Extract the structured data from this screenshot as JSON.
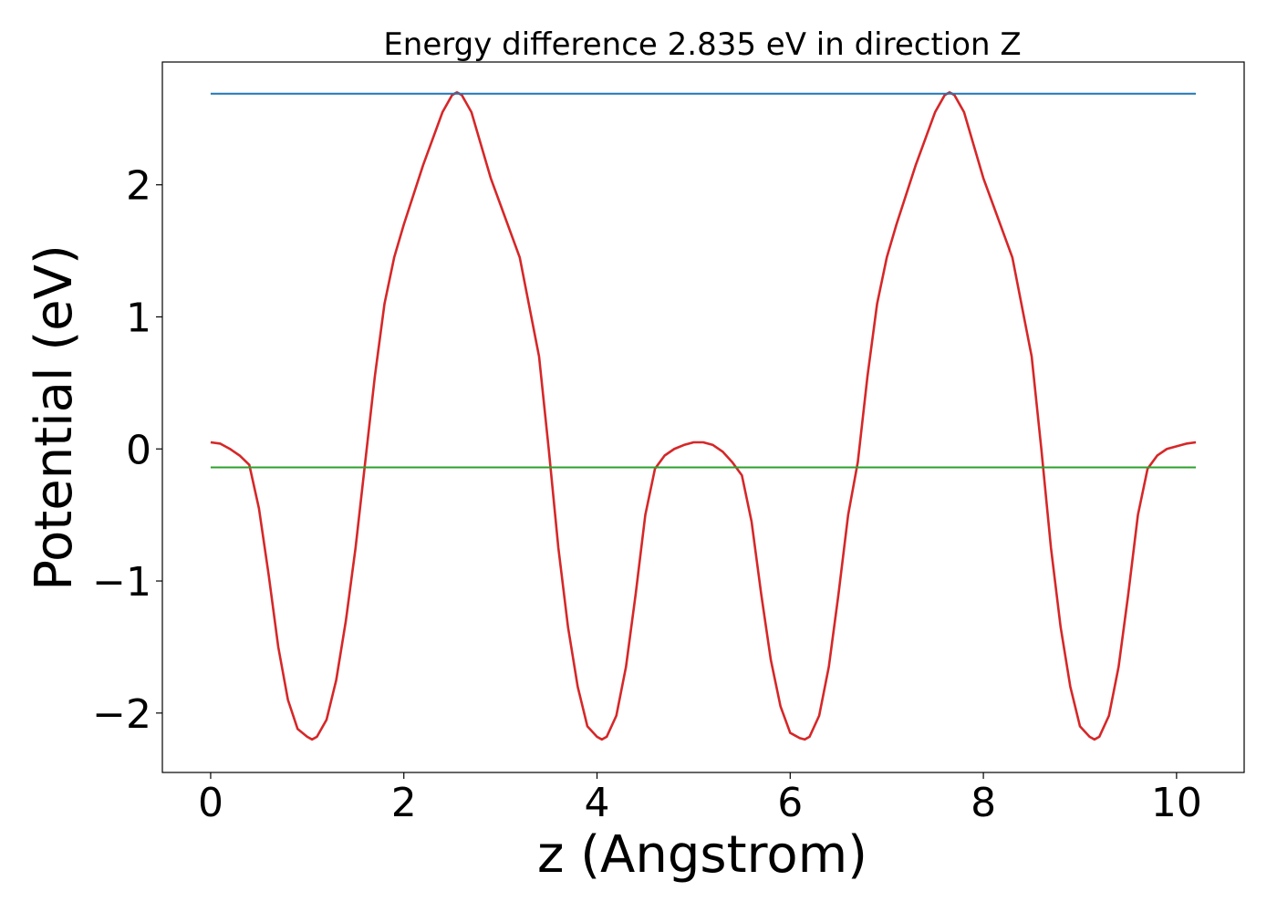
{
  "chart_data": {
    "type": "line",
    "title": "Energy difference 2.835 eV in direction Z",
    "xlabel": "z (Angstrom)",
    "ylabel": "Potential (eV)",
    "xlim": [
      -0.5,
      10.7
    ],
    "ylim": [
      -2.45,
      2.93
    ],
    "xticks": [
      0,
      2,
      4,
      6,
      8,
      10
    ],
    "xtick_labels": [
      "0",
      "2",
      "4",
      "6",
      "8",
      "10"
    ],
    "yticks": [
      -2,
      -1,
      0,
      1,
      2
    ],
    "ytick_labels": [
      "−2",
      "−1",
      "0",
      "1",
      "2"
    ],
    "grid": false,
    "series": [
      {
        "color": "#d62728",
        "x": [
          0,
          0.1,
          0.2,
          0.3,
          0.4,
          0.5,
          0.6,
          0.7,
          0.8,
          0.9,
          1.0,
          1.05,
          1.1,
          1.2,
          1.3,
          1.4,
          1.5,
          1.6,
          1.7,
          1.8,
          1.9,
          2.0,
          2.2,
          2.4,
          2.5,
          2.55,
          2.6,
          2.7,
          2.8,
          2.9,
          3.0,
          3.2,
          3.4,
          3.5,
          3.6,
          3.7,
          3.8,
          3.9,
          4.0,
          4.05,
          4.1,
          4.2,
          4.3,
          4.4,
          4.5,
          4.6,
          4.7,
          4.8,
          4.9,
          5.0,
          5.1,
          5.2,
          5.3,
          5.4,
          5.5,
          5.6,
          5.7,
          5.8,
          5.9,
          6.0,
          6.1,
          6.15,
          6.2,
          6.3,
          6.4,
          6.5,
          6.6,
          6.7,
          6.8,
          6.9,
          7.0,
          7.1,
          7.3,
          7.5,
          7.6,
          7.65,
          7.7,
          7.8,
          7.9,
          8.0,
          8.1,
          8.3,
          8.5,
          8.6,
          8.7,
          8.8,
          8.9,
          9.0,
          9.1,
          9.15,
          9.2,
          9.3,
          9.4,
          9.5,
          9.6,
          9.7,
          9.8,
          9.9,
          10.0,
          10.1,
          10.2
        ],
        "y": [
          0.05,
          0.04,
          0.0,
          -0.05,
          -0.12,
          -0.45,
          -0.95,
          -1.5,
          -1.9,
          -2.12,
          -2.18,
          -2.2,
          -2.18,
          -2.05,
          -1.75,
          -1.3,
          -0.75,
          -0.1,
          0.55,
          1.1,
          1.45,
          1.7,
          2.15,
          2.55,
          2.68,
          2.7,
          2.68,
          2.55,
          2.3,
          2.05,
          1.85,
          1.45,
          0.7,
          0.0,
          -0.75,
          -1.35,
          -1.8,
          -2.1,
          -2.18,
          -2.2,
          -2.18,
          -2.02,
          -1.65,
          -1.1,
          -0.5,
          -0.15,
          -0.05,
          0.0,
          0.03,
          0.05,
          0.05,
          0.03,
          -0.02,
          -0.1,
          -0.2,
          -0.55,
          -1.1,
          -1.6,
          -1.95,
          -2.15,
          -2.19,
          -2.2,
          -2.18,
          -2.02,
          -1.65,
          -1.1,
          -0.5,
          -0.1,
          0.55,
          1.1,
          1.45,
          1.7,
          2.15,
          2.55,
          2.68,
          2.7,
          2.68,
          2.55,
          2.3,
          2.05,
          1.85,
          1.45,
          0.7,
          0.0,
          -0.75,
          -1.35,
          -1.8,
          -2.1,
          -2.18,
          -2.2,
          -2.18,
          -2.02,
          -1.65,
          -1.1,
          -0.5,
          -0.15,
          -0.05,
          0.0,
          0.02,
          0.04,
          0.05
        ]
      },
      {
        "color": "#1f77b4",
        "x": [
          0,
          10.2
        ],
        "y": [
          2.69,
          2.69
        ]
      },
      {
        "color": "#2ca02c",
        "x": [
          0,
          10.2
        ],
        "y": [
          -0.14,
          -0.14
        ]
      }
    ]
  }
}
